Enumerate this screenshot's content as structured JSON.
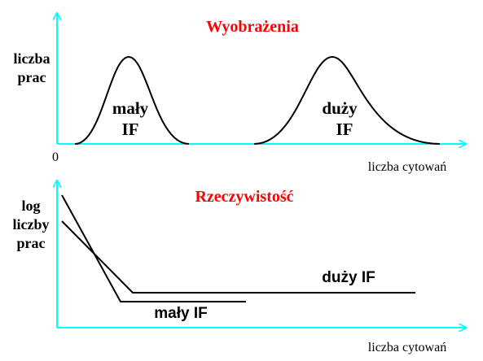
{
  "colors": {
    "title": "#ff0000",
    "axis": "#00ffff",
    "lines": "#000000"
  },
  "top_panel": {
    "title": "Wyobrażenia",
    "ylabel_line1": "liczba",
    "ylabel_line2": "prac",
    "origin_label": "0",
    "xlabel": "liczba cytowań",
    "left_curve_label_line1": "mały",
    "left_curve_label_line2": "IF",
    "right_curve_label_line1": "duży",
    "right_curve_label_line2": "IF"
  },
  "bottom_panel": {
    "title": "Rzeczywistość",
    "ylabel_line1": "log",
    "ylabel_line2": "liczby",
    "ylabel_line3": "prac",
    "xlabel": "liczba cytowań",
    "line_large_if_label": "duży IF",
    "line_small_if_label": "mały IF"
  }
}
